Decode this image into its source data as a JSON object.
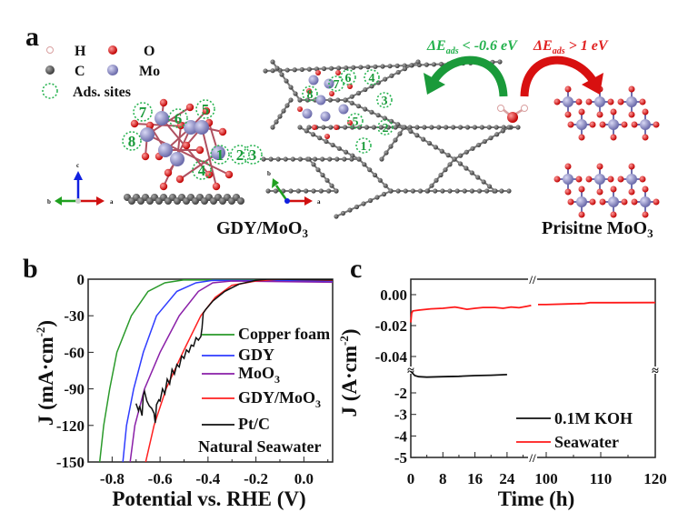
{
  "panel_a": {
    "label": "a",
    "legend": [
      {
        "symbol": "H",
        "color": "#f3d8d8"
      },
      {
        "symbol": "O",
        "color": "#e02020"
      },
      {
        "symbol": "C",
        "color": "#555555"
      },
      {
        "symbol": "Mo",
        "color": "#8080c0"
      },
      {
        "symbol": "Ads. sites",
        "color": "#22b14c"
      }
    ],
    "site_numbers": [
      "1",
      "2",
      "3",
      "4",
      "5",
      "6",
      "7",
      "8"
    ],
    "axes_side": [
      "c",
      "b",
      "a"
    ],
    "axes_top": [
      "b",
      "a"
    ],
    "green_arrow_text": {
      "prefix": "ΔE",
      "sub": "ads",
      "rest": " < -0.6 eV"
    },
    "red_arrow_text": {
      "prefix": "ΔE",
      "sub": "ads",
      "rest": " > 1 eV"
    },
    "caption_left": {
      "main": "GDY/MoO",
      "sub": "3"
    },
    "caption_right": {
      "main": "Prisitne MoO",
      "sub": "3"
    },
    "colors": {
      "green": "#22b14c",
      "red": "#e02020",
      "carbon": "#5a5a5a",
      "oxygen": "#e02020",
      "molybdenum": "#8080c0"
    }
  },
  "chart_data": [
    {
      "panel": "b",
      "type": "line",
      "xlabel": "Potential vs. RHE (V)",
      "ylabel": {
        "main": "J (mA·cm",
        "sup": "-2",
        "close": ")"
      },
      "xlim": [
        -0.9,
        0.12
      ],
      "ylim": [
        -150,
        0
      ],
      "xticks": [
        "-0.8",
        "-0.6",
        "-0.4",
        "-0.2",
        "0.0"
      ],
      "xtick_values": [
        -0.8,
        -0.6,
        -0.4,
        -0.2,
        0.0
      ],
      "yticks": [
        "0",
        "-30",
        "-60",
        "-90",
        "-120",
        "-150"
      ],
      "ytick_values": [
        0,
        -30,
        -60,
        -90,
        -120,
        -150
      ],
      "grid": false,
      "legend_placement": "right",
      "annotation": "Natural Seawater",
      "series": [
        {
          "name": "Copper foam",
          "color": "#2a9a2a",
          "x": [
            -0.852,
            -0.835,
            -0.81,
            -0.78,
            -0.72,
            -0.65,
            -0.58,
            -0.5,
            0.12
          ],
          "y": [
            -150,
            -120,
            -90,
            -60,
            -30,
            -10,
            -3,
            -0.5,
            -1
          ]
        },
        {
          "name": "GDY",
          "color": "#2f3cff",
          "x": [
            -0.755,
            -0.74,
            -0.71,
            -0.67,
            -0.615,
            -0.53,
            -0.45,
            -0.38,
            0.12
          ],
          "y": [
            -150,
            -120,
            -90,
            -60,
            -30,
            -10,
            -3,
            -1,
            -1.5
          ]
        },
        {
          "name": "MoO3",
          "name_main": "MoO",
          "name_sub": "3",
          "color": "#8a1fa8",
          "x": [
            -0.725,
            -0.705,
            -0.665,
            -0.6,
            -0.52,
            -0.44,
            -0.38,
            -0.3,
            0.12
          ],
          "y": [
            -150,
            -120,
            -90,
            -60,
            -30,
            -10,
            -3,
            -1.5,
            -2.5
          ]
        },
        {
          "name": "GDY/MoO3",
          "name_main": "GDY/MoO",
          "name_sub": "3",
          "color": "#ff2020",
          "x": [
            -0.66,
            -0.625,
            -0.575,
            -0.505,
            -0.43,
            -0.37,
            -0.3,
            -0.2,
            -0.1,
            0.12
          ],
          "y": [
            -150,
            -120,
            -90,
            -60,
            -30,
            -15,
            -5,
            -1.5,
            0,
            -1
          ]
        },
        {
          "name": "Pt/C",
          "color": "#111111",
          "x": [
            -0.7,
            -0.69,
            -0.685,
            -0.675,
            -0.67,
            -0.665,
            -0.655,
            -0.645,
            -0.635,
            -0.625,
            -0.62,
            -0.615,
            -0.605,
            -0.6,
            -0.59,
            -0.58,
            -0.57,
            -0.56,
            -0.55,
            -0.54,
            -0.53,
            -0.52,
            -0.51,
            -0.5,
            -0.49,
            -0.48,
            -0.47,
            -0.46,
            -0.45,
            -0.44,
            -0.43,
            -0.425,
            -0.42,
            -0.41,
            -0.38,
            -0.33,
            -0.27,
            -0.2,
            -0.15,
            0.12
          ],
          "y": [
            -102,
            -108,
            -104,
            -112,
            -95,
            -92,
            -100,
            -104,
            -106,
            -110,
            -118,
            -103,
            -99,
            -100,
            -90,
            -94,
            -82,
            -86,
            -74,
            -78,
            -70,
            -72,
            -63,
            -65,
            -58,
            -60,
            -54,
            -55,
            -48,
            -50,
            -47,
            -40,
            -28,
            -25,
            -18,
            -10,
            -4,
            -1,
            0,
            -0.5
          ]
        }
      ]
    },
    {
      "panel": "c",
      "type": "line",
      "xlabel": "Time (h)",
      "ylabel": {
        "main": "J (A·cm",
        "sup": "-2",
        "close": ")"
      },
      "x_axis_break": true,
      "y_axis_break": true,
      "xlim_segments": [
        [
          0,
          30
        ],
        [
          97.5,
          120
        ]
      ],
      "ylim_segments": [
        [
          -0.05,
          0.01
        ],
        [
          -5,
          -1
        ]
      ],
      "xticks": [
        "0",
        "8",
        "16",
        "24",
        "100",
        "110",
        "120"
      ],
      "xtick_values": [
        0,
        8,
        16,
        24,
        100,
        110,
        120
      ],
      "yticks_upper": [
        "0.00",
        "-0.02",
        "-0.04"
      ],
      "ytick_upper_values": [
        0,
        -0.02,
        -0.04
      ],
      "yticks_lower": [
        "-2",
        "-3",
        "-4",
        "-5"
      ],
      "ytick_lower_values": [
        -2,
        -3,
        -4,
        -5
      ],
      "grid": false,
      "legend_placement": "bottom-right",
      "series": [
        {
          "name": "0.1M KOH",
          "color": "#111111",
          "x": [
            0,
            0.5,
            1,
            2,
            4,
            8,
            12,
            16,
            20,
            24
          ],
          "y": [
            -1.0,
            -1.1,
            -1.2,
            -1.25,
            -1.27,
            -1.25,
            -1.23,
            -1.2,
            -1.18,
            -1.15
          ]
        },
        {
          "name": "Seawater",
          "color": "#ff1a1a",
          "x": [
            0,
            0.2,
            0.5,
            2,
            5,
            8,
            11,
            12,
            14,
            16,
            18,
            21,
            23,
            25,
            27,
            29,
            30,
            98.5,
            100,
            104,
            107,
            108,
            112,
            120
          ],
          "y": [
            -0.018,
            -0.012,
            -0.0105,
            -0.01,
            -0.0092,
            -0.0088,
            -0.008,
            -0.0085,
            -0.0095,
            -0.0088,
            -0.0083,
            -0.0083,
            -0.0088,
            -0.008,
            -0.0085,
            -0.0075,
            -0.007,
            -0.0064,
            -0.0064,
            -0.006,
            -0.0057,
            -0.0052,
            -0.0052,
            -0.0051
          ]
        }
      ]
    }
  ]
}
